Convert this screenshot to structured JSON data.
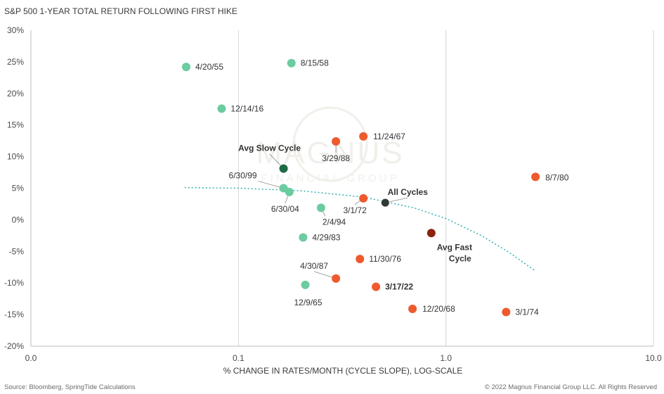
{
  "chart_data": {
    "type": "scatter",
    "title": "S&P 500 1-YEAR TOTAL RETURN FOLLOWING FIRST HIKE",
    "xlabel": "% CHANGE IN RATES/MONTH (CYCLE SLOPE), LOG-SCALE",
    "ylabel": "",
    "x_scale": "log",
    "xlim": [
      0.01,
      10
    ],
    "ylim": [
      -20,
      30
    ],
    "x_ticks": [
      0.01,
      0.1,
      1,
      10
    ],
    "x_tick_labels": [
      "0.0",
      "0.1",
      "1.0",
      "10.0"
    ],
    "y_ticks": [
      30,
      25,
      20,
      15,
      10,
      5,
      0,
      -5,
      -10,
      -15,
      -20
    ],
    "y_tick_labels": [
      "30%",
      "25%",
      "20%",
      "15%",
      "10%",
      "5%",
      "0%",
      "-5%",
      "-10%",
      "-15%",
      "-20%"
    ],
    "grid": "vertical only",
    "colors": {
      "slow": "#6ccba0",
      "fast": "#ee5a2e",
      "avg_slow": "#1f6b47",
      "avg_fast": "#8b2310",
      "all": "#2f3a36",
      "trend": "#3cb4b4"
    },
    "points": [
      {
        "label": "4/20/55",
        "x": 0.056,
        "y": 24.2,
        "group": "slow"
      },
      {
        "label": "8/15/58",
        "x": 0.18,
        "y": 24.8,
        "group": "slow"
      },
      {
        "label": "12/14/16",
        "x": 0.083,
        "y": 17.6,
        "group": "slow"
      },
      {
        "label": "6/30/99",
        "x": 0.165,
        "y": 5.0,
        "group": "slow"
      },
      {
        "label": "6/30/04",
        "x": 0.176,
        "y": 4.4,
        "group": "slow"
      },
      {
        "label": "2/4/94",
        "x": 0.25,
        "y": 1.9,
        "group": "slow"
      },
      {
        "label": "4/29/83",
        "x": 0.205,
        "y": -2.8,
        "group": "slow"
      },
      {
        "label": "12/9/65",
        "x": 0.21,
        "y": -10.3,
        "group": "slow"
      },
      {
        "label": "11/24/67",
        "x": 0.4,
        "y": 13.2,
        "group": "fast"
      },
      {
        "label": "3/29/88",
        "x": 0.295,
        "y": 12.4,
        "group": "fast"
      },
      {
        "label": "8/7/80",
        "x": 2.7,
        "y": 6.8,
        "group": "fast"
      },
      {
        "label": "3/1/72",
        "x": 0.4,
        "y": 3.4,
        "group": "fast"
      },
      {
        "label": "11/30/76",
        "x": 0.385,
        "y": -6.2,
        "group": "fast"
      },
      {
        "label": "4/30/87",
        "x": 0.295,
        "y": -9.3,
        "group": "fast"
      },
      {
        "label": "3/17/22",
        "x": 0.46,
        "y": -10.6,
        "group": "fast",
        "bold": true
      },
      {
        "label": "12/20/68",
        "x": 0.69,
        "y": -14.1,
        "group": "fast"
      },
      {
        "label": "3/1/74",
        "x": 1.95,
        "y": -14.6,
        "group": "fast"
      },
      {
        "label": "Avg Slow Cycle",
        "x": 0.165,
        "y": 8.1,
        "group": "avg_slow",
        "bold": true
      },
      {
        "label": "Avg Fast Cycle",
        "x": 0.85,
        "y": -2.1,
        "group": "avg_fast",
        "bold": true
      },
      {
        "label": "All Cycles",
        "x": 0.51,
        "y": 2.7,
        "group": "all",
        "bold": true
      }
    ],
    "trendline": {
      "x": [
        0.055,
        0.1,
        0.2,
        0.4,
        0.7,
        1.0,
        1.5,
        2.0,
        2.7
      ],
      "y": [
        5.1,
        5.0,
        4.6,
        3.6,
        1.9,
        0.2,
        -2.6,
        -5.1,
        -8.1
      ]
    }
  },
  "watermark": {
    "line1": "MAGNUS",
    "line2": "FINANCIAL GROUP"
  },
  "footer": {
    "source": "Source: Bloomberg, SpringTide Calculations",
    "copyright": "© 2022 Magnus Financial Group LLC. All Rights Reserved"
  }
}
